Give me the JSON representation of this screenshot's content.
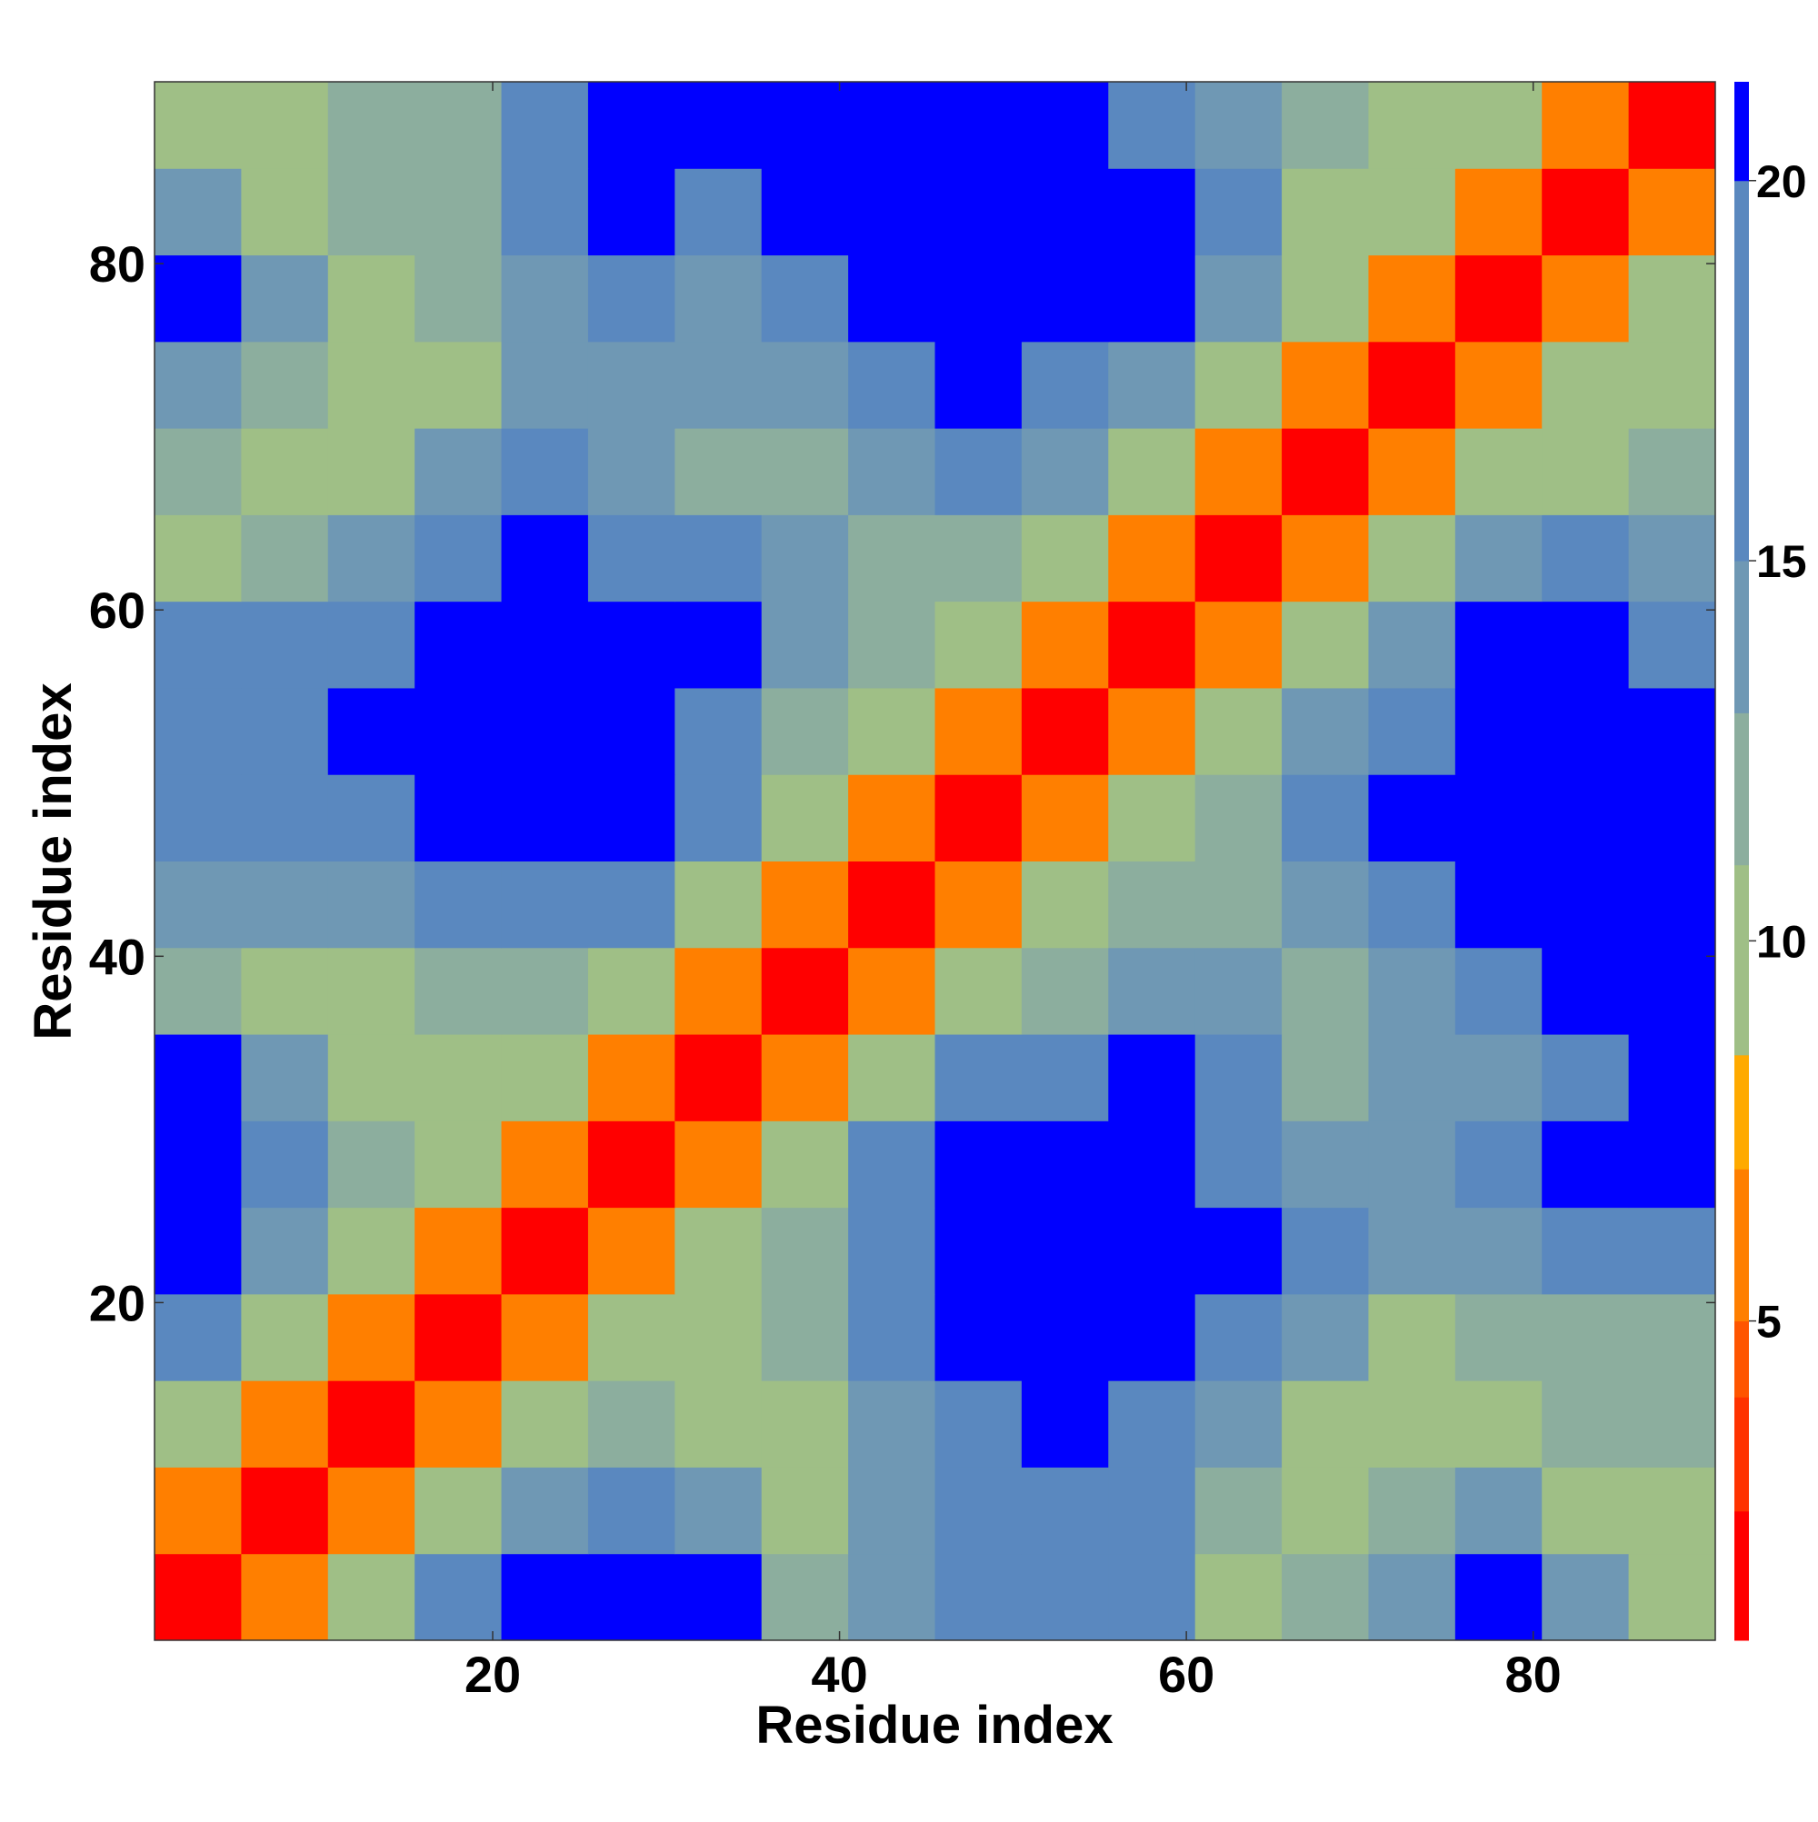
{
  "chart_data": {
    "type": "heatmap",
    "xlabel": "Residue index",
    "ylabel": "Residue index",
    "xlim": [
      0.5,
      90.5
    ],
    "ylim": [
      0.5,
      90.5
    ],
    "xticks": [
      20,
      40,
      60,
      80
    ],
    "yticks": [
      20,
      40,
      60,
      80
    ],
    "xbins": [
      0.5,
      5.5,
      10.5,
      15.5,
      20.5,
      25.5,
      30.5,
      35.5,
      40.5,
      45.5,
      50.5,
      55.5,
      60.5,
      65.5,
      70.5,
      75.5,
      80.5,
      85.5,
      90.5
    ],
    "ybins": [
      0.5,
      5.5,
      10.5,
      15.5,
      20.5,
      25.5,
      30.5,
      35.5,
      40.5,
      45.5,
      50.5,
      55.5,
      60.5,
      65.5,
      70.5,
      75.5,
      80.5,
      85.5,
      90.5
    ],
    "z": [
      [
        2,
        7,
        11,
        16,
        21,
        21,
        21,
        13,
        15,
        18,
        18,
        17,
        11,
        12,
        15,
        21,
        15,
        10
      ],
      [
        7,
        2,
        7,
        11,
        14,
        19,
        15,
        11,
        14,
        16,
        16,
        20,
        13,
        10,
        12,
        14,
        11,
        11
      ],
      [
        11,
        7,
        2,
        7,
        11,
        13,
        10,
        11,
        15,
        19,
        21,
        20,
        15,
        10,
        9,
        11,
        12,
        12
      ],
      [
        16,
        11,
        7,
        2,
        7,
        9,
        10,
        12,
        16,
        21,
        21,
        21,
        18,
        14,
        11,
        12,
        13,
        13
      ],
      [
        21,
        14,
        11,
        7,
        2,
        6,
        10,
        13,
        18,
        21,
        21,
        21,
        21,
        17,
        14,
        15,
        18,
        19
      ],
      [
        21,
        19,
        13,
        9,
        6,
        2,
        6,
        11,
        16,
        21,
        21,
        21,
        20,
        15,
        15,
        17,
        21,
        21
      ],
      [
        21,
        15,
        10,
        10,
        10,
        6,
        2,
        6,
        10,
        16,
        20,
        21,
        18,
        13,
        14,
        15,
        17,
        21
      ],
      [
        13,
        11,
        11,
        12,
        13,
        11,
        6,
        2,
        6,
        11,
        13,
        15,
        14,
        13,
        15,
        18,
        21,
        21
      ],
      [
        15,
        14,
        15,
        16,
        18,
        16,
        10,
        6,
        2,
        6,
        9,
        12,
        12,
        14,
        18,
        21,
        21,
        21
      ],
      [
        18,
        16,
        19,
        21,
        21,
        21,
        16,
        11,
        6,
        2,
        6,
        10,
        13,
        17,
        21,
        21,
        21,
        21
      ],
      [
        18,
        16,
        21,
        21,
        21,
        21,
        20,
        13,
        9,
        6,
        2,
        6,
        10,
        14,
        20,
        21,
        21,
        21
      ],
      [
        17,
        20,
        20,
        21,
        21,
        21,
        21,
        15,
        12,
        10,
        6,
        2,
        6,
        10,
        15,
        21,
        21,
        20
      ],
      [
        11,
        13,
        15,
        18,
        21,
        20,
        18,
        14,
        12,
        13,
        10,
        6,
        2,
        6,
        10,
        14,
        17,
        15
      ],
      [
        12,
        10,
        10,
        14,
        17,
        15,
        13,
        13,
        14,
        17,
        14,
        10,
        6,
        2,
        6,
        9,
        11,
        13
      ],
      [
        15,
        12,
        9,
        11,
        14,
        15,
        14,
        15,
        18,
        21,
        20,
        15,
        10,
        6,
        2,
        6,
        9,
        11
      ],
      [
        21,
        14,
        11,
        12,
        15,
        17,
        15,
        18,
        21,
        21,
        21,
        21,
        14,
        9,
        6,
        2,
        6,
        10
      ],
      [
        15,
        11,
        12,
        13,
        18,
        21,
        17,
        21,
        21,
        21,
        21,
        21,
        17,
        11,
        9,
        6,
        2,
        6
      ],
      [
        10,
        11,
        12,
        13,
        19,
        21,
        21,
        21,
        21,
        21,
        21,
        20,
        15,
        13,
        11,
        10,
        6,
        2
      ]
    ],
    "zlim": [
      0.8,
      21.3
    ],
    "zticks": [
      5,
      10,
      15,
      20
    ],
    "colorscale": [
      [
        2.5,
        "#ff0000"
      ],
      [
        4,
        "#ff3300"
      ],
      [
        5,
        "#ff5500"
      ],
      [
        7,
        "#ff7f00"
      ],
      [
        8.5,
        "#ffaa00"
      ],
      [
        11,
        "#9fbf86"
      ],
      [
        13,
        "#8cae9e"
      ],
      [
        15,
        "#6f98b4"
      ],
      [
        20,
        "#5a88bf"
      ],
      [
        21.3,
        "#0000ff"
      ]
    ]
  }
}
